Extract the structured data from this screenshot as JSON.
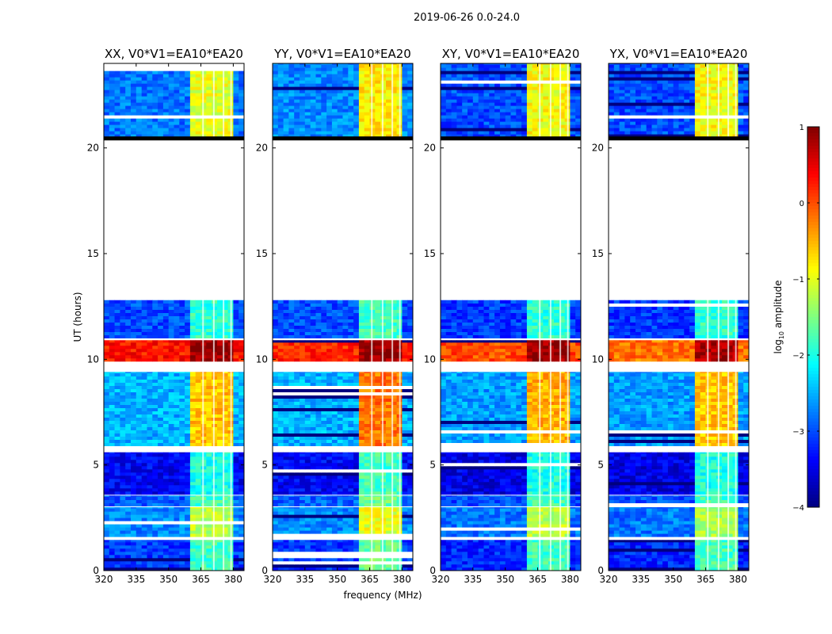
{
  "chart_data": {
    "type": "heatmap",
    "title": "2019-06-26 0.0-24.0",
    "xlabel": "frequency (MHz)",
    "ylabel": "UT (hours)",
    "xlim": [
      320,
      385
    ],
    "ylim": [
      0,
      24
    ],
    "xticks": [
      "320",
      "335",
      "350",
      "365",
      "380"
    ],
    "xtick_values": [
      320,
      335,
      350,
      365,
      380
    ],
    "yticks": [
      "0",
      "5",
      "10",
      "15",
      "20"
    ],
    "ytick_values": [
      0,
      5,
      10,
      15,
      20
    ],
    "panels": [
      {
        "title": "XX, V0*V1=EA10*EA20"
      },
      {
        "title": "YY, V0*V1=EA10*EA20"
      },
      {
        "title": "XY, V0*V1=EA10*EA20"
      },
      {
        "title": "YX, V0*V1=EA10*EA20"
      }
    ],
    "rfi_band_mhz": [
      361,
      381
    ],
    "rfi_gaps_mhz": [
      366,
      371,
      375.5,
      379
    ],
    "segments": [
      {
        "t": [
          0.0,
          1.45
        ],
        "bg": [
          -3.1,
          -3.1,
          -3.2,
          -3.2
        ],
        "band": [
          -1.8,
          -1.6,
          -1.8,
          -1.8
        ]
      },
      {
        "t": [
          1.6,
          3.0
        ],
        "bg": [
          -2.7,
          -2.7,
          -2.8,
          -2.8
        ],
        "band": [
          -1.2,
          -1.0,
          -1.2,
          -1.3
        ]
      },
      {
        "t": [
          3.05,
          3.55
        ],
        "bg": [
          -2.9,
          -2.9,
          -3.0,
          -3.0
        ],
        "band": [
          -1.8,
          -1.6,
          -1.8,
          -1.8
        ]
      },
      {
        "t": [
          3.6,
          5.6
        ],
        "bg": [
          -3.4,
          -3.4,
          -3.5,
          -3.5
        ],
        "band": [
          -2.0,
          -1.8,
          -2.0,
          -2.0
        ]
      },
      {
        "t": [
          5.9,
          9.4
        ],
        "bg": [
          -2.5,
          -2.5,
          -2.6,
          -2.6
        ],
        "band": [
          -0.6,
          -0.2,
          -0.5,
          -0.6
        ]
      },
      {
        "t": [
          9.9,
          10.9
        ],
        "bg": [
          0.3,
          0.2,
          0.0,
          -0.2
        ],
        "band": [
          0.9,
          0.9,
          0.9,
          0.8
        ]
      },
      {
        "t": [
          11.0,
          12.8
        ],
        "bg": [
          -3.0,
          -3.0,
          -3.1,
          -3.1
        ],
        "band": [
          -1.9,
          -1.8,
          -1.9,
          -1.9
        ]
      },
      {
        "t": [
          20.5,
          24.0
        ],
        "bg": [
          -2.8,
          -2.7,
          -3.0,
          -3.0
        ],
        "band": [
          -1.0,
          -0.8,
          -0.9,
          -0.9
        ]
      }
    ],
    "blank_lines_hours": [
      19.1,
      20.45
    ],
    "colorbar": {
      "label": "log10 amplitude",
      "range": [
        -4,
        1
      ],
      "ticks": [
        "1",
        "0",
        "−1",
        "−2",
        "−3",
        "−4"
      ],
      "tick_values": [
        1,
        0,
        -1,
        -2,
        -3,
        -4
      ]
    }
  }
}
